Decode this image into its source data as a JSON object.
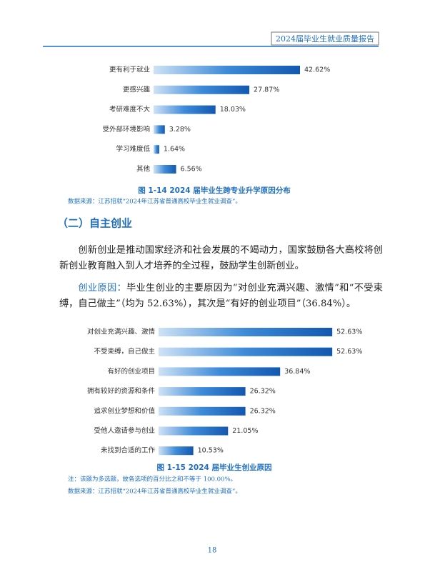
{
  "header": {
    "title": "2024届毕业生就业质量报告"
  },
  "figures": [
    {
      "type": "bar",
      "categories": [
        "更有利于就业",
        "更感兴趣",
        "考研难度不大",
        "受外部环境影响",
        "学习难度低",
        "其他"
      ],
      "values": [
        42.62,
        27.87,
        18.03,
        3.28,
        1.64,
        6.56
      ],
      "value_labels": [
        "42.62%",
        "27.87%",
        "18.03%",
        "3.28%",
        "1.64%",
        "6.56%"
      ],
      "caption": "图 1-14  2024 届毕业生跨专业升学原因分布",
      "source": "数据来源：江苏招就“2024年江苏省普通高校毕业生就业调查”。"
    },
    {
      "type": "bar",
      "categories": [
        "对创业充满兴趣、激情",
        "不受束缚，自己做主",
        "有好的创业项目",
        "拥有较好的资源和条件",
        "追求创业梦想和价值",
        "受他人邀请参与创业",
        "未找到合适的工作"
      ],
      "values": [
        52.63,
        52.63,
        36.84,
        26.32,
        26.32,
        21.05,
        10.53
      ],
      "value_labels": [
        "52.63%",
        "52.63%",
        "36.84%",
        "26.32%",
        "26.32%",
        "21.05%",
        "10.53%"
      ],
      "caption": "图 1-15  2024 届毕业生创业原因",
      "note": "注：该题为多选题，故各选项的百分比之和不等于 100.00%。",
      "source": "数据来源：江苏招就“2024年江苏省普通高校毕业生就业调查”。"
    }
  ],
  "section": {
    "heading": "（二）自主创业",
    "paragraphs": [
      {
        "text": "创新创业是推动国家经济和社会发展的不竭动力，国家鼓励各大高校将创新创业教育融入到人才培养的全过程，鼓励学生创新创业。"
      },
      {
        "lead": "创业原因：",
        "text": "毕业生创业的主要原因为“对创业充满兴趣、激情”和“不受束缚，自己做主”（均为 52.63%），其次是“有好的创业项目”（36.84%）。"
      }
    ]
  },
  "footer": {
    "page": "18"
  }
}
